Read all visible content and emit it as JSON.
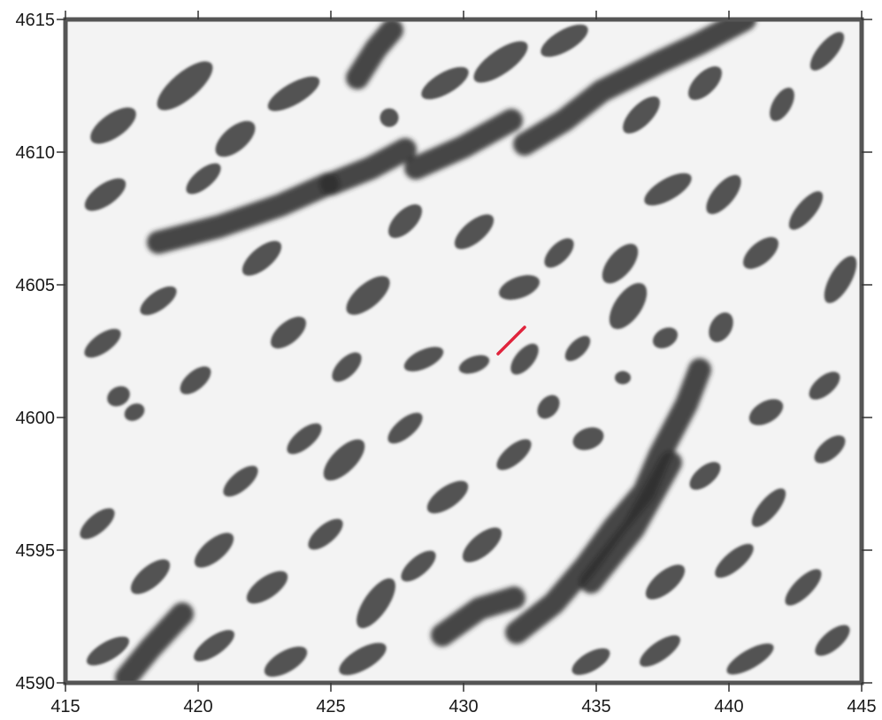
{
  "map": {
    "type": "grayscale-shaded-relief-grid",
    "palette": {
      "background": "#f3f3f3",
      "dark_feature": "#2e2e2e",
      "frame": "#555555",
      "profile_line": "#e0243c"
    },
    "x_axis": {
      "range": [
        415,
        445
      ],
      "ticks": [
        {
          "value": 415,
          "label": "415"
        },
        {
          "value": 420,
          "label": "420"
        },
        {
          "value": 425,
          "label": "425"
        },
        {
          "value": 430,
          "label": "430"
        },
        {
          "value": 435,
          "label": "435"
        },
        {
          "value": 440,
          "label": "440"
        },
        {
          "value": 445,
          "label": "445"
        }
      ]
    },
    "y_axis": {
      "range": [
        4590,
        4615
      ],
      "ticks": [
        {
          "value": 4615,
          "label": "4615"
        },
        {
          "value": 4610,
          "label": "4610"
        },
        {
          "value": 4605,
          "label": "4605"
        },
        {
          "value": 4600,
          "label": "4600"
        },
        {
          "value": 4595,
          "label": "4595"
        },
        {
          "value": 4590,
          "label": "4590"
        }
      ]
    },
    "profile_line": {
      "from": [
        431.3,
        4602.4
      ],
      "to": [
        432.3,
        4603.4
      ]
    },
    "lineaments": [
      [
        [
          418.5,
          4606.6
        ],
        [
          420.8,
          4607.2
        ],
        [
          423.1,
          4608.0
        ],
        [
          424.9,
          4608.8
        ]
      ],
      [
        [
          425.0,
          4608.8
        ],
        [
          426.5,
          4609.4
        ],
        [
          427.8,
          4610.1
        ]
      ],
      [
        [
          428.2,
          4609.4
        ],
        [
          430.0,
          4610.2
        ],
        [
          431.8,
          4611.2
        ]
      ],
      [
        [
          432.3,
          4610.3
        ],
        [
          433.8,
          4611.2
        ],
        [
          435.2,
          4612.3
        ],
        [
          437.4,
          4613.4
        ],
        [
          438.9,
          4614.1
        ],
        [
          440.6,
          4615.0
        ]
      ],
      [
        [
          432.0,
          4591.9
        ],
        [
          433.4,
          4593.0
        ],
        [
          434.6,
          4594.4
        ],
        [
          435.7,
          4595.9
        ],
        [
          436.8,
          4597.2
        ],
        [
          437.4,
          4598.6
        ],
        [
          438.4,
          4600.5
        ],
        [
          438.9,
          4601.8
        ]
      ],
      [
        [
          429.2,
          4591.8
        ],
        [
          430.6,
          4592.8
        ],
        [
          431.9,
          4593.2
        ]
      ],
      [
        [
          434.8,
          4593.8
        ],
        [
          436.4,
          4595.8
        ],
        [
          437.8,
          4598.3
        ]
      ],
      [
        [
          417.3,
          4590.2
        ],
        [
          418.2,
          4591.3
        ],
        [
          419.4,
          4592.6
        ]
      ],
      [
        [
          426.0,
          4612.8
        ],
        [
          426.7,
          4613.9
        ],
        [
          427.3,
          4614.6
        ]
      ]
    ],
    "blobs": [
      {
        "center": [
          416.8,
          4611.0
        ],
        "rx": 1.0,
        "ry": 0.45,
        "angle": -35
      },
      {
        "center": [
          419.5,
          4612.5
        ],
        "rx": 1.3,
        "ry": 0.5,
        "angle": -40
      },
      {
        "center": [
          421.4,
          4610.5
        ],
        "rx": 0.9,
        "ry": 0.45,
        "angle": -40
      },
      {
        "center": [
          423.6,
          4612.2
        ],
        "rx": 1.1,
        "ry": 0.4,
        "angle": -30
      },
      {
        "center": [
          427.2,
          4611.3
        ],
        "rx": 0.35,
        "ry": 0.35,
        "angle": 0
      },
      {
        "center": [
          429.3,
          4612.6
        ],
        "rx": 1.0,
        "ry": 0.4,
        "angle": -30
      },
      {
        "center": [
          431.4,
          4613.4
        ],
        "rx": 1.2,
        "ry": 0.45,
        "angle": -35
      },
      {
        "center": [
          433.8,
          4614.2
        ],
        "rx": 1.0,
        "ry": 0.4,
        "angle": -30
      },
      {
        "center": [
          436.7,
          4611.4
        ],
        "rx": 0.9,
        "ry": 0.4,
        "angle": -45
      },
      {
        "center": [
          439.1,
          4612.6
        ],
        "rx": 0.8,
        "ry": 0.4,
        "angle": -45
      },
      {
        "center": [
          442.0,
          4611.8
        ],
        "rx": 0.7,
        "ry": 0.35,
        "angle": -60
      },
      {
        "center": [
          443.7,
          4613.8
        ],
        "rx": 0.9,
        "ry": 0.35,
        "angle": -50
      },
      {
        "center": [
          416.5,
          4608.4
        ],
        "rx": 0.9,
        "ry": 0.4,
        "angle": -35
      },
      {
        "center": [
          420.2,
          4609.0
        ],
        "rx": 0.8,
        "ry": 0.35,
        "angle": -40
      },
      {
        "center": [
          422.4,
          4606.0
        ],
        "rx": 0.9,
        "ry": 0.4,
        "angle": -40
      },
      {
        "center": [
          426.4,
          4604.6
        ],
        "rx": 1.0,
        "ry": 0.45,
        "angle": -40
      },
      {
        "center": [
          427.8,
          4607.4
        ],
        "rx": 0.8,
        "ry": 0.4,
        "angle": -45
      },
      {
        "center": [
          430.4,
          4607.0
        ],
        "rx": 0.9,
        "ry": 0.4,
        "angle": -40
      },
      {
        "center": [
          432.1,
          4604.9
        ],
        "rx": 0.8,
        "ry": 0.4,
        "angle": -20
      },
      {
        "center": [
          433.6,
          4606.2
        ],
        "rx": 0.7,
        "ry": 0.35,
        "angle": -45
      },
      {
        "center": [
          435.9,
          4605.8
        ],
        "rx": 0.9,
        "ry": 0.45,
        "angle": -50
      },
      {
        "center": [
          436.2,
          4604.2
        ],
        "rx": 1.0,
        "ry": 0.5,
        "angle": -55
      },
      {
        "center": [
          437.7,
          4608.6
        ],
        "rx": 1.0,
        "ry": 0.4,
        "angle": -30
      },
      {
        "center": [
          439.8,
          4608.4
        ],
        "rx": 0.9,
        "ry": 0.4,
        "angle": -50
      },
      {
        "center": [
          441.2,
          4606.2
        ],
        "rx": 0.8,
        "ry": 0.4,
        "angle": -40
      },
      {
        "center": [
          442.9,
          4607.8
        ],
        "rx": 0.9,
        "ry": 0.35,
        "angle": -50
      },
      {
        "center": [
          444.2,
          4605.2
        ],
        "rx": 1.0,
        "ry": 0.4,
        "angle": -60
      },
      {
        "center": [
          416.4,
          4602.8
        ],
        "rx": 0.8,
        "ry": 0.35,
        "angle": -35
      },
      {
        "center": [
          418.5,
          4604.4
        ],
        "rx": 0.8,
        "ry": 0.35,
        "angle": -35
      },
      {
        "center": [
          419.9,
          4601.4
        ],
        "rx": 0.7,
        "ry": 0.35,
        "angle": -40
      },
      {
        "center": [
          423.4,
          4603.2
        ],
        "rx": 0.8,
        "ry": 0.4,
        "angle": -40
      },
      {
        "center": [
          425.6,
          4601.9
        ],
        "rx": 0.7,
        "ry": 0.35,
        "angle": -45
      },
      {
        "center": [
          428.5,
          4602.2
        ],
        "rx": 0.8,
        "ry": 0.35,
        "angle": -25
      },
      {
        "center": [
          430.4,
          4602.0
        ],
        "rx": 0.6,
        "ry": 0.3,
        "angle": -20
      },
      {
        "center": [
          432.3,
          4602.2
        ],
        "rx": 0.7,
        "ry": 0.35,
        "angle": -50
      },
      {
        "center": [
          433.2,
          4600.4
        ],
        "rx": 0.5,
        "ry": 0.35,
        "angle": -50
      },
      {
        "center": [
          434.3,
          4602.6
        ],
        "rx": 0.6,
        "ry": 0.3,
        "angle": -45
      },
      {
        "center": [
          436.0,
          4601.5
        ],
        "rx": 0.3,
        "ry": 0.25,
        "angle": 0
      },
      {
        "center": [
          437.6,
          4603.0
        ],
        "rx": 0.5,
        "ry": 0.35,
        "angle": -30
      },
      {
        "center": [
          439.7,
          4603.4
        ],
        "rx": 0.6,
        "ry": 0.4,
        "angle": -60
      },
      {
        "center": [
          441.4,
          4600.2
        ],
        "rx": 0.7,
        "ry": 0.4,
        "angle": -30
      },
      {
        "center": [
          443.6,
          4601.2
        ],
        "rx": 0.7,
        "ry": 0.35,
        "angle": -40
      },
      {
        "center": [
          417.0,
          4600.8
        ],
        "rx": 0.45,
        "ry": 0.35,
        "angle": -30
      },
      {
        "center": [
          417.6,
          4600.2
        ],
        "rx": 0.4,
        "ry": 0.3,
        "angle": -30
      },
      {
        "center": [
          421.6,
          4597.6
        ],
        "rx": 0.8,
        "ry": 0.35,
        "angle": -40
      },
      {
        "center": [
          424.0,
          4599.2
        ],
        "rx": 0.8,
        "ry": 0.35,
        "angle": -40
      },
      {
        "center": [
          425.5,
          4598.4
        ],
        "rx": 1.0,
        "ry": 0.45,
        "angle": -45
      },
      {
        "center": [
          427.8,
          4599.6
        ],
        "rx": 0.8,
        "ry": 0.35,
        "angle": -40
      },
      {
        "center": [
          429.4,
          4597.0
        ],
        "rx": 0.9,
        "ry": 0.4,
        "angle": -35
      },
      {
        "center": [
          431.9,
          4598.6
        ],
        "rx": 0.8,
        "ry": 0.35,
        "angle": -40
      },
      {
        "center": [
          434.7,
          4599.2
        ],
        "rx": 0.6,
        "ry": 0.4,
        "angle": -20
      },
      {
        "center": [
          439.1,
          4597.8
        ],
        "rx": 0.7,
        "ry": 0.35,
        "angle": -40
      },
      {
        "center": [
          441.5,
          4596.6
        ],
        "rx": 0.9,
        "ry": 0.35,
        "angle": -50
      },
      {
        "center": [
          443.8,
          4598.8
        ],
        "rx": 0.7,
        "ry": 0.35,
        "angle": -40
      },
      {
        "center": [
          416.2,
          4596.0
        ],
        "rx": 0.8,
        "ry": 0.35,
        "angle": -40
      },
      {
        "center": [
          418.2,
          4594.0
        ],
        "rx": 0.9,
        "ry": 0.4,
        "angle": -40
      },
      {
        "center": [
          420.6,
          4595.0
        ],
        "rx": 0.9,
        "ry": 0.4,
        "angle": -40
      },
      {
        "center": [
          422.6,
          4593.6
        ],
        "rx": 0.9,
        "ry": 0.4,
        "angle": -35
      },
      {
        "center": [
          424.8,
          4595.6
        ],
        "rx": 0.8,
        "ry": 0.35,
        "angle": -40
      },
      {
        "center": [
          426.7,
          4593.0
        ],
        "rx": 1.1,
        "ry": 0.45,
        "angle": -55
      },
      {
        "center": [
          428.3,
          4594.4
        ],
        "rx": 0.8,
        "ry": 0.35,
        "angle": -40
      },
      {
        "center": [
          430.7,
          4595.2
        ],
        "rx": 0.9,
        "ry": 0.4,
        "angle": -40
      },
      {
        "center": [
          437.6,
          4593.8
        ],
        "rx": 0.9,
        "ry": 0.4,
        "angle": -40
      },
      {
        "center": [
          440.2,
          4594.6
        ],
        "rx": 0.9,
        "ry": 0.35,
        "angle": -40
      },
      {
        "center": [
          442.8,
          4593.6
        ],
        "rx": 0.9,
        "ry": 0.35,
        "angle": -45
      },
      {
        "center": [
          416.6,
          4591.2
        ],
        "rx": 0.9,
        "ry": 0.35,
        "angle": -30
      },
      {
        "center": [
          420.6,
          4591.4
        ],
        "rx": 0.9,
        "ry": 0.35,
        "angle": -35
      },
      {
        "center": [
          423.3,
          4590.8
        ],
        "rx": 0.9,
        "ry": 0.4,
        "angle": -30
      },
      {
        "center": [
          426.2,
          4590.9
        ],
        "rx": 1.0,
        "ry": 0.4,
        "angle": -30
      },
      {
        "center": [
          434.8,
          4590.8
        ],
        "rx": 0.8,
        "ry": 0.35,
        "angle": -30
      },
      {
        "center": [
          437.4,
          4591.2
        ],
        "rx": 0.9,
        "ry": 0.35,
        "angle": -35
      },
      {
        "center": [
          440.8,
          4590.9
        ],
        "rx": 1.0,
        "ry": 0.35,
        "angle": -30
      },
      {
        "center": [
          443.9,
          4591.6
        ],
        "rx": 0.8,
        "ry": 0.35,
        "angle": -40
      }
    ]
  }
}
